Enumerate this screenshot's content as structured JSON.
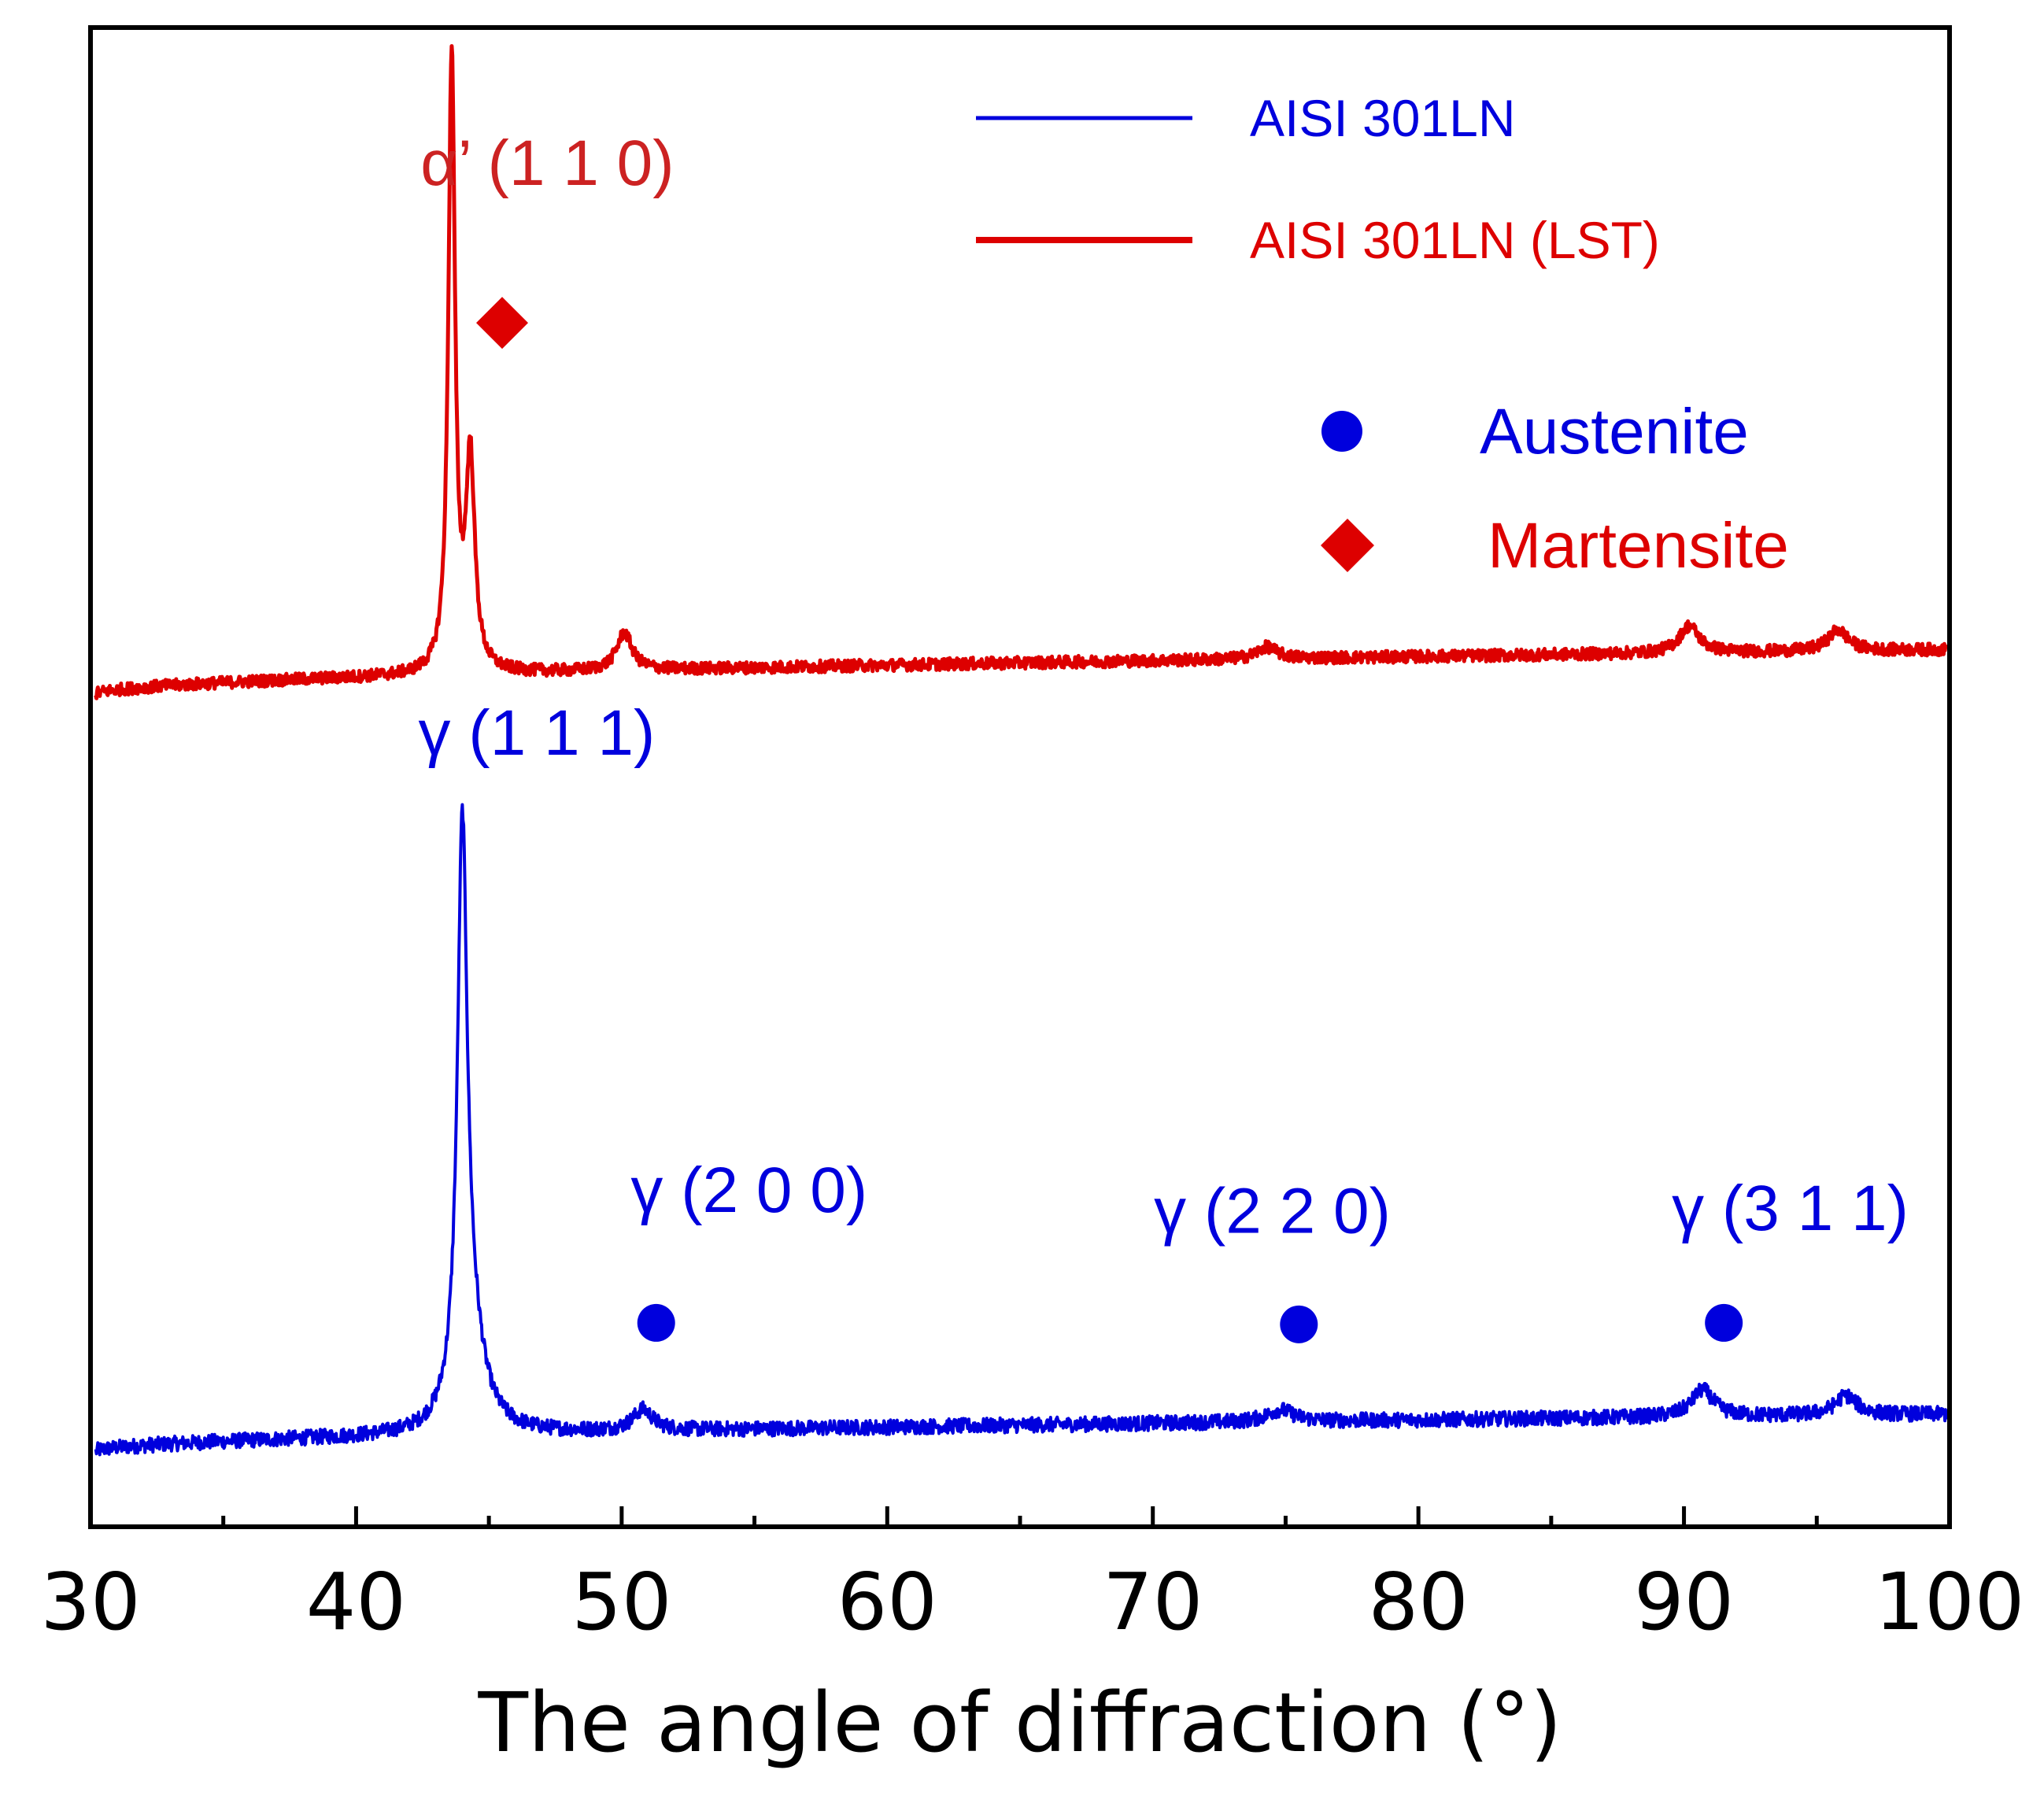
{
  "chart_data": {
    "type": "line",
    "title": "",
    "xlabel": "The angle of diffraction (°)",
    "ylabel": "",
    "xlim": [
      30,
      100
    ],
    "ylim": [
      0,
      100
    ],
    "x_major_ticks": [
      30,
      40,
      50,
      60,
      70,
      80,
      90,
      100
    ],
    "x_tick_labels": [
      "30",
      "40",
      "50",
      "60",
      "70",
      "80",
      "90",
      "100"
    ],
    "x_minor_ticks": [
      35,
      45,
      55,
      65,
      75,
      85,
      95
    ],
    "grid": false,
    "legend_placement": "top-right",
    "series": [
      {
        "name": "AISI 301LN",
        "color": "#0000dd",
        "line_style": "thin",
        "baseline_start": 5.0,
        "baseline_end": 7.5,
        "noise": 0.5,
        "peaks": [
          {
            "x": 44.0,
            "height": 37.0,
            "width": 0.22
          },
          {
            "x": 44.3,
            "height": 6.0,
            "width": 0.6
          },
          {
            "x": 50.8,
            "height": 1.4,
            "width": 0.45
          },
          {
            "x": 74.8,
            "height": 0.8,
            "width": 0.6
          },
          {
            "x": 90.7,
            "height": 1.8,
            "width": 0.5
          },
          {
            "x": 96.1,
            "height": 1.3,
            "width": 0.5
          }
        ]
      },
      {
        "name": "AISI 301LN (LST)",
        "color": "#dd0000",
        "line_style": "thick",
        "baseline_start": 55.5,
        "baseline_end": 58.5,
        "noise": 0.4,
        "peaks": [
          {
            "x": 43.6,
            "height": 41.0,
            "width": 0.15
          },
          {
            "x": 44.3,
            "height": 14.0,
            "width": 0.2
          },
          {
            "x": 50.1,
            "height": 2.5,
            "width": 0.35
          },
          {
            "x": 74.3,
            "height": 0.8,
            "width": 0.45
          },
          {
            "x": 90.2,
            "height": 1.8,
            "width": 0.45
          },
          {
            "x": 95.8,
            "height": 1.4,
            "width": 0.45
          }
        ]
      }
    ],
    "phase_legend": [
      {
        "marker": "circle",
        "label": "Austenite",
        "color": "#0000dd"
      },
      {
        "marker": "diamond",
        "label": "Martensite",
        "color": "#dd0000"
      }
    ],
    "annotations": [
      {
        "text": "α’ (1 1 0)",
        "color": "#cc2222",
        "x": 47.2,
        "y": 89.5,
        "size": "large"
      },
      {
        "text": "γ (1 1 1)",
        "color": "#0000dd",
        "x": 46.8,
        "y": 51.5,
        "size": "medium"
      },
      {
        "text": "γ (2 0 0)",
        "color": "#0000dd",
        "x": 54.8,
        "y": 21.0,
        "size": "medium"
      },
      {
        "text": "γ (2 2 0)",
        "color": "#0000dd",
        "x": 74.5,
        "y": 19.6,
        "size": "medium"
      },
      {
        "text": "γ (3 1 1)",
        "color": "#0000dd",
        "x": 94.0,
        "y": 19.8,
        "size": "medium"
      }
    ],
    "markers": [
      {
        "shape": "diamond",
        "color": "#dd0000",
        "x": 45.5,
        "y": 80.3
      },
      {
        "shape": "circle",
        "color": "#0000dd",
        "x": 51.3,
        "y": 13.6
      },
      {
        "shape": "circle",
        "color": "#0000dd",
        "x": 75.5,
        "y": 13.5
      },
      {
        "shape": "circle",
        "color": "#0000dd",
        "x": 91.5,
        "y": 13.6
      }
    ]
  }
}
